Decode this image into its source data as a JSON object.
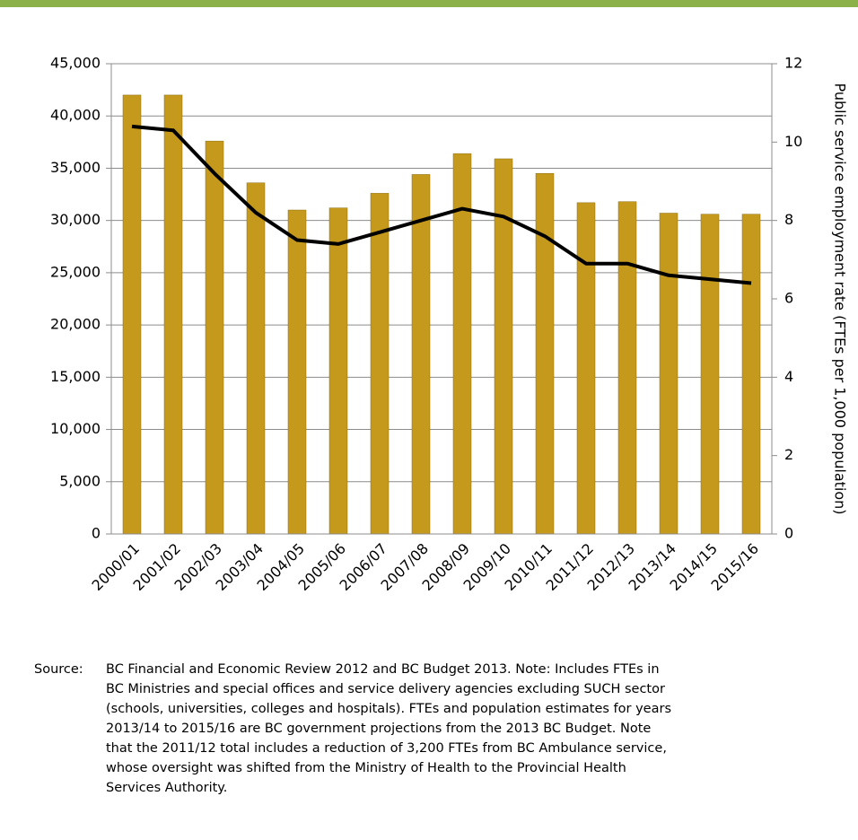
{
  "chart_data": {
    "type": "bar",
    "y2_label": "Public service employment rate (FTEs per 1,000 population)",
    "categories": [
      "2000/01",
      "2001/02",
      "2002/03",
      "2003/04",
      "2004/05",
      "2005/06",
      "2006/07",
      "2007/08",
      "2008/09",
      "2009/10",
      "2010/11",
      "2011/12",
      "2012/13",
      "2013/14",
      "2014/15",
      "2015/16"
    ],
    "series": [
      {
        "type": "bar",
        "color": "#c59a1c",
        "values": [
          42000,
          42000,
          37600,
          33600,
          31000,
          31200,
          32600,
          34400,
          36400,
          35900,
          34500,
          31700,
          31800,
          30700,
          30600,
          30600
        ]
      },
      {
        "type": "line",
        "axis": "y2",
        "color": "#000000",
        "values": [
          10.4,
          10.3,
          9.2,
          8.2,
          7.5,
          7.4,
          7.7,
          8.0,
          8.3,
          8.1,
          7.6,
          6.9,
          6.9,
          6.6,
          6.5,
          6.4
        ]
      }
    ],
    "ylim": [
      0,
      45000
    ],
    "yticks": [
      0,
      {
        "value": 5000,
        "label": "5,000"
      },
      {
        "value": 10000,
        "label": "10,000"
      },
      {
        "value": 15000,
        "label": "15,000"
      },
      {
        "value": 20000,
        "label": "20,000"
      },
      {
        "value": 25000,
        "label": "25,000"
      },
      {
        "value": 30000,
        "label": "30,000"
      },
      {
        "value": 35000,
        "label": "35,000"
      },
      {
        "value": 40000,
        "label": "40,000"
      },
      {
        "value": 45000,
        "label": "45,000"
      }
    ],
    "y2lim": [
      0,
      12
    ],
    "y2ticks": [
      0,
      2,
      4,
      6,
      8,
      10,
      12
    ],
    "grid": true,
    "source_label": "Source:",
    "source_lines": [
      "BC Financial and Economic Review 2012 and BC Budget 2013. Note: Includes FTEs in",
      "BC Ministries and special offices and service delivery agencies excluding SUCH sector",
      "(schools, universities, colleges and hospitals). FTEs and population estimates for years",
      "2013/14 to 2015/16 are BC government projections from the 2013 BC Budget. Note",
      "that the 2011/12 total includes a reduction of 3,200 FTEs from BC Ambulance service,",
      "whose oversight was shifted from the Ministry of Health to the Provincial Health",
      "Services Authority."
    ]
  }
}
